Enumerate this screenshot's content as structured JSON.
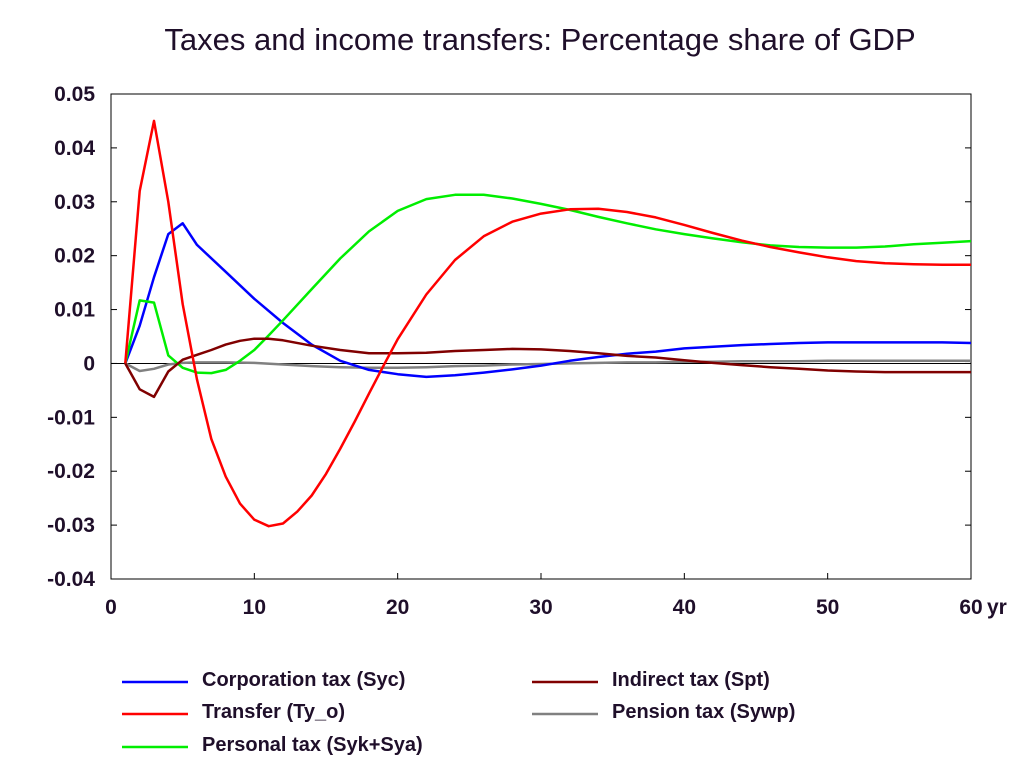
{
  "chart_data": {
    "type": "line",
    "title": "Taxes and income transfers: Percentage share of GDP",
    "xlabel": "",
    "ylabel": "",
    "x_unit_label": "yr",
    "xlim": [
      0,
      60
    ],
    "ylim": [
      -0.04,
      0.05
    ],
    "x_ticks": [
      0,
      10,
      20,
      30,
      40,
      50,
      60
    ],
    "x_tick_labels": [
      "0",
      "10",
      "20",
      "30",
      "40",
      "50",
      "60"
    ],
    "y_ticks": [
      -0.04,
      -0.03,
      -0.02,
      -0.01,
      0,
      0.01,
      0.02,
      0.03,
      0.04,
      0.05
    ],
    "y_tick_labels": [
      "-0.04",
      "-0.03",
      "-0.02",
      "-0.01",
      "0",
      "0.01",
      "0.02",
      "0.03",
      "0.04",
      "0.05"
    ],
    "grid": false,
    "zero_line": true,
    "legend_position": "bottom",
    "series": [
      {
        "name": "Corporation tax (Syc)",
        "color": "#0000ff",
        "x": [
          1,
          2,
          3,
          4,
          5,
          6,
          8,
          10,
          12,
          14,
          16,
          18,
          20,
          22,
          24,
          26,
          28,
          30,
          32,
          34,
          36,
          38,
          40,
          42,
          44,
          46,
          48,
          50,
          52,
          54,
          56,
          58,
          60
        ],
        "y": [
          0,
          0.007,
          0.016,
          0.024,
          0.026,
          0.022,
          0.017,
          0.012,
          0.0075,
          0.0035,
          0.0005,
          -0.0012,
          -0.002,
          -0.0025,
          -0.0022,
          -0.0017,
          -0.0011,
          -0.0004,
          0.0005,
          0.0012,
          0.0018,
          0.0022,
          0.0028,
          0.0031,
          0.0034,
          0.0036,
          0.0038,
          0.0039,
          0.0039,
          0.0039,
          0.0039,
          0.0039,
          0.0038
        ]
      },
      {
        "name": "Transfer (Ty_o)",
        "color": "#ff0000",
        "x": [
          1,
          2,
          3,
          4,
          5,
          6,
          7,
          8,
          9,
          10,
          11,
          12,
          13,
          14,
          15,
          16,
          17,
          18,
          19,
          20,
          22,
          24,
          26,
          28,
          30,
          32,
          34,
          36,
          38,
          40,
          42,
          44,
          46,
          48,
          50,
          52,
          54,
          56,
          58,
          60
        ],
        "y": [
          0,
          0.032,
          0.045,
          0.03,
          0.011,
          -0.003,
          -0.014,
          -0.021,
          -0.026,
          -0.029,
          -0.0302,
          -0.0297,
          -0.0275,
          -0.0245,
          -0.0205,
          -0.0158,
          -0.0108,
          -0.0056,
          -0.0005,
          0.0045,
          0.0128,
          0.0192,
          0.0236,
          0.0263,
          0.0278,
          0.0286,
          0.0287,
          0.0281,
          0.0271,
          0.0257,
          0.0242,
          0.0228,
          0.0216,
          0.0206,
          0.0197,
          0.019,
          0.0186,
          0.0184,
          0.0183,
          0.0183
        ]
      },
      {
        "name": "Personal tax (Syk+Sya)",
        "color": "#00ee00",
        "x": [
          1,
          2,
          3,
          4,
          5,
          6,
          7,
          8,
          9,
          10,
          11,
          12,
          14,
          16,
          18,
          20,
          22,
          24,
          26,
          28,
          30,
          32,
          34,
          36,
          38,
          40,
          42,
          44,
          46,
          48,
          50,
          52,
          54,
          56,
          58,
          60
        ],
        "y": [
          0,
          0.0117,
          0.0113,
          0.0015,
          -0.0008,
          -0.0017,
          -0.0018,
          -0.0012,
          0.0005,
          0.0025,
          0.0052,
          0.008,
          0.0138,
          0.0195,
          0.0245,
          0.0283,
          0.0305,
          0.0313,
          0.0313,
          0.0306,
          0.0296,
          0.0285,
          0.0272,
          0.026,
          0.0249,
          0.024,
          0.0232,
          0.0225,
          0.0219,
          0.0216,
          0.0215,
          0.0215,
          0.0217,
          0.0221,
          0.0224,
          0.0227
        ]
      },
      {
        "name": "Indirect tax (Spt)",
        "color": "#800000",
        "x": [
          1,
          2,
          3,
          4,
          5,
          6,
          7,
          8,
          9,
          10,
          11,
          12,
          14,
          16,
          18,
          20,
          22,
          24,
          26,
          28,
          30,
          32,
          34,
          36,
          38,
          40,
          42,
          44,
          46,
          48,
          50,
          52,
          54,
          56,
          58,
          60
        ],
        "y": [
          0,
          -0.0048,
          -0.0062,
          -0.0015,
          0.0007,
          0.0016,
          0.0025,
          0.0035,
          0.0042,
          0.0046,
          0.0046,
          0.0043,
          0.0033,
          0.0025,
          0.0019,
          0.0019,
          0.002,
          0.0023,
          0.0025,
          0.0027,
          0.0026,
          0.0023,
          0.0019,
          0.0014,
          0.0011,
          0.0006,
          0.0001,
          -0.0003,
          -0.0007,
          -0.001,
          -0.0013,
          -0.0015,
          -0.0016,
          -0.0016,
          -0.0016,
          -0.0016
        ]
      },
      {
        "name": "Pension tax (Sywp)",
        "color": "#808080",
        "x": [
          1,
          2,
          3,
          4,
          5,
          6,
          8,
          10,
          12,
          14,
          16,
          18,
          20,
          22,
          24,
          26,
          28,
          30,
          32,
          34,
          36,
          38,
          40,
          42,
          44,
          46,
          48,
          50,
          52,
          54,
          56,
          58,
          60
        ],
        "y": [
          0,
          -0.0014,
          -0.001,
          -0.0002,
          0.0001,
          0.0002,
          0.0002,
          0.0001,
          -0.0002,
          -0.0005,
          -0.0007,
          -0.0008,
          -0.0008,
          -0.0007,
          -0.0005,
          -0.0004,
          -0.0002,
          -0.0001,
          0,
          0.0001,
          0.0002,
          0.0002,
          0.0003,
          0.0003,
          0.0004,
          0.0004,
          0.0004,
          0.0005,
          0.0005,
          0.0005,
          0.0005,
          0.0005,
          0.0005
        ]
      }
    ]
  }
}
